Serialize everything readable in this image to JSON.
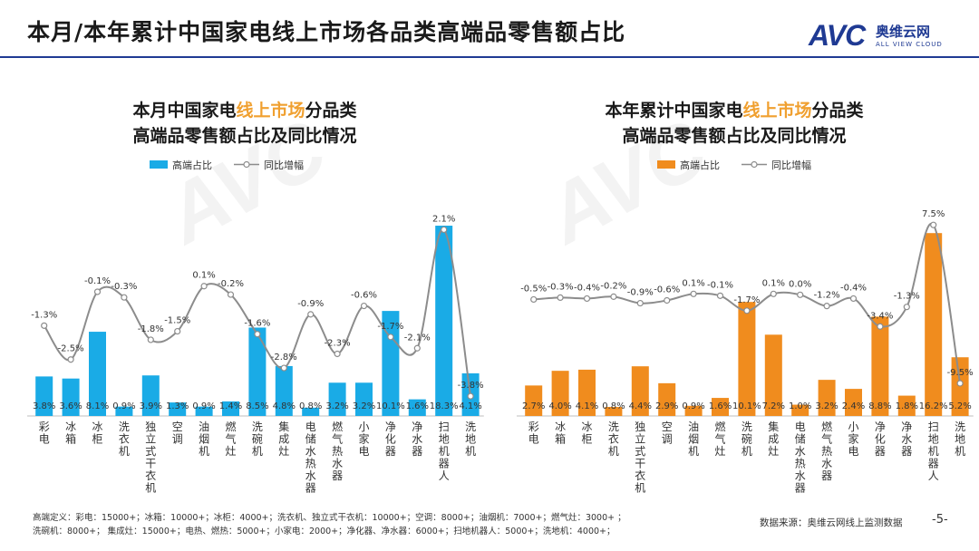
{
  "page": {
    "title": "本月/本年累计中国家电线上市场各品类高端品零售额占比",
    "logo_mark": "AVC",
    "logo_cn": "奥维云网",
    "logo_en": "ALL VIEW CLOUD",
    "footnote_line1": "高端定义：彩电：15000+；冰箱：10000+；冰柜：4000+；洗衣机、独立式干衣机：10000+；空调：8000+；油烟机：7000+；燃气灶：3000+ ；",
    "footnote_line2": "洗碗机：8000+；    集成灶：15000+；电热、燃热：5000+；小家电：2000+；净化器、净水器：6000+；扫地机器人：5000+；洗地机：4000+；",
    "source": "数据来源：奥维云网线上监测数据",
    "page_number": "-5-"
  },
  "colors": {
    "monthly_bar": "#1aabe6",
    "ytd_bar": "#f08c1e",
    "line": "#8c8c8c",
    "title_highlight": "#f0a030",
    "brand": "#1f3a93"
  },
  "chart_data": [
    {
      "type": "bar",
      "title_part1": "本月中国家电",
      "title_highlight": "线上市场",
      "title_part2": "分品类",
      "title_line2": "高端品零售额占比及同比情况",
      "legend_bar": "高端占比",
      "legend_line": "同比增幅",
      "categories": [
        "彩电",
        "冰箱",
        "冰柜",
        "洗衣机",
        "独立式干衣机",
        "空调",
        "油烟机",
        "燃气灶",
        "洗碗机",
        "集成灶",
        "电储水热水器",
        "燃气热水器",
        "小家电",
        "净化器",
        "净水器",
        "扫地机器人",
        "洗地机"
      ],
      "share_labels": [
        "3.8%",
        "3.6%",
        "8.1%",
        "0.9%",
        "3.9%",
        "1.3%",
        "0.9%",
        "1.4%",
        "8.5%",
        "4.8%",
        "0.8%",
        "3.2%",
        "3.2%",
        "10.1%",
        "1.6%",
        "18.3%",
        "4.1%"
      ],
      "share_values": [
        3.8,
        3.6,
        8.1,
        0.9,
        3.9,
        1.3,
        0.9,
        1.4,
        8.5,
        4.8,
        0.8,
        3.2,
        3.2,
        10.1,
        1.6,
        18.3,
        4.1
      ],
      "yoy_labels": [
        "-1.3%",
        "-2.5%",
        "-0.1%",
        "-0.3%",
        "-1.8%",
        "-1.5%",
        "0.1%",
        "-0.2%",
        "-1.6%",
        "-2.8%",
        "-0.9%",
        "-2.3%",
        "-0.6%",
        "-1.7%",
        "-2.1%",
        "2.1%",
        "-3.8%"
      ],
      "yoy_values": [
        -1.3,
        -2.5,
        -0.1,
        -0.3,
        -1.8,
        -1.5,
        0.1,
        -0.2,
        -1.6,
        -2.8,
        -0.9,
        -2.3,
        -0.6,
        -1.7,
        -2.1,
        2.1,
        -3.8
      ],
      "share_ylim": [
        0,
        19
      ],
      "yoy_ylim": [
        -4.5,
        2.5
      ]
    },
    {
      "type": "bar",
      "title_part1": "本年累计中国家电",
      "title_highlight": "线上市场",
      "title_part2": "分品类",
      "title_line2": "高端品零售额占比及同比情况",
      "legend_bar": "高端占比",
      "legend_line": "同比增幅",
      "categories": [
        "彩电",
        "冰箱",
        "冰柜",
        "洗衣机",
        "独立式干衣机",
        "空调",
        "油烟机",
        "燃气灶",
        "洗碗机",
        "集成灶",
        "电储水热水器",
        "燃气热水器",
        "小家电",
        "净化器",
        "净水器",
        "扫地机器人",
        "洗地机"
      ],
      "share_labels": [
        "2.7%",
        "4.0%",
        "4.1%",
        "0.8%",
        "4.4%",
        "2.9%",
        "0.9%",
        "1.6%",
        "10.1%",
        "7.2%",
        "1.0%",
        "3.2%",
        "2.4%",
        "8.8%",
        "1.8%",
        "16.2%",
        "5.2%"
      ],
      "share_values": [
        2.7,
        4.0,
        4.1,
        0.8,
        4.4,
        2.9,
        0.9,
        1.6,
        10.1,
        7.2,
        1.0,
        3.2,
        2.4,
        8.8,
        1.8,
        16.2,
        5.2
      ],
      "yoy_labels": [
        "-0.5%",
        "-0.3%",
        "-0.4%",
        "-0.2%",
        "-0.9%",
        "-0.6%",
        "0.1%",
        "-0.1%",
        "-1.7%",
        "0.1%",
        "0.0%",
        "-1.2%",
        "-0.4%",
        "-3.4%",
        "-1.3%",
        "7.5%",
        "-9.5%"
      ],
      "yoy_values": [
        -0.5,
        -0.3,
        -0.4,
        -0.2,
        -0.9,
        -0.6,
        0.1,
        -0.1,
        -1.7,
        0.1,
        0.0,
        -1.2,
        -0.4,
        -3.4,
        -1.3,
        7.5,
        -9.5
      ],
      "share_ylim": [
        0,
        17.5
      ],
      "yoy_ylim": [
        -13,
        8.2
      ]
    }
  ]
}
